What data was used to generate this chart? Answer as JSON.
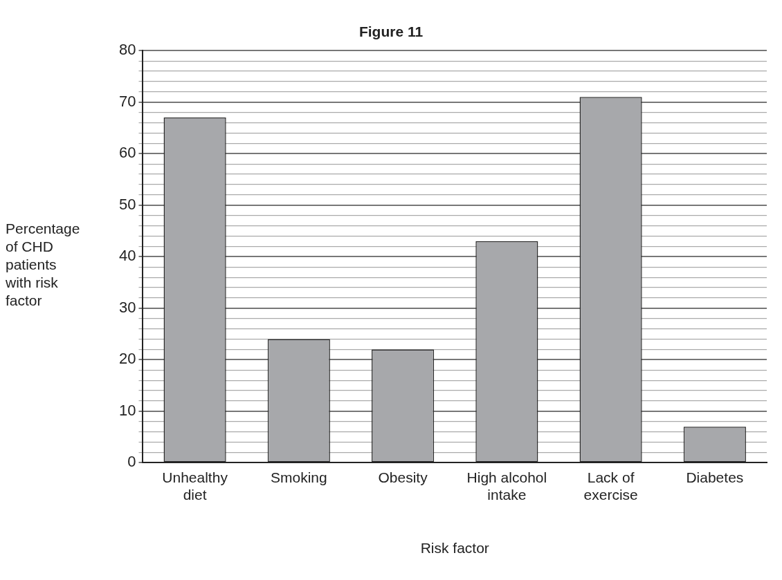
{
  "chart_data": {
    "type": "bar",
    "title": "Figure 11",
    "xlabel": "Risk factor",
    "ylabel": "Percentage\nof CHD\npatients\nwith risk\nfactor",
    "categories": [
      "Unhealthy\ndiet",
      "Smoking",
      "Obesity",
      "High alcohol\nintake",
      "Lack of\nexercise",
      "Diabetes"
    ],
    "values": [
      67,
      24,
      22,
      43,
      71,
      7
    ],
    "color": "#a7a8ab",
    "ylim": [
      0,
      80
    ],
    "yticks": [
      0,
      {
        "value": 2,
        "label": null
      },
      {
        "value": 4,
        "label": null
      },
      {
        "value": 6,
        "label": null
      },
      {
        "value": 8,
        "label": null
      },
      10,
      {
        "value": 12,
        "label": null
      },
      {
        "value": 14,
        "label": null
      },
      {
        "value": 16,
        "label": null
      },
      {
        "value": 18,
        "label": null
      },
      20,
      {
        "value": 22,
        "label": null
      },
      {
        "value": 24,
        "label": null
      },
      {
        "value": 26,
        "label": null
      },
      {
        "value": 28,
        "label": null
      },
      30,
      {
        "value": 32,
        "label": null
      },
      {
        "value": 34,
        "label": null
      },
      {
        "value": 36,
        "label": null
      },
      {
        "value": 38,
        "label": null
      },
      40,
      {
        "value": 42,
        "label": null
      },
      {
        "value": 44,
        "label": null
      },
      {
        "value": 46,
        "label": null
      },
      {
        "value": 48,
        "label": null
      },
      50,
      {
        "value": 52,
        "label": null
      },
      {
        "value": 54,
        "label": null
      },
      {
        "value": 56,
        "label": null
      },
      {
        "value": 58,
        "label": null
      },
      60,
      {
        "value": 62,
        "label": null
      },
      {
        "value": 64,
        "label": null
      },
      {
        "value": 66,
        "label": null
      },
      {
        "value": 68,
        "label": null
      },
      70,
      {
        "value": 72,
        "label": null
      },
      {
        "value": 74,
        "label": null
      },
      {
        "value": 76,
        "label": null
      },
      {
        "value": 78,
        "label": null
      },
      80
    ],
    "grid": "y",
    "legend": false
  }
}
